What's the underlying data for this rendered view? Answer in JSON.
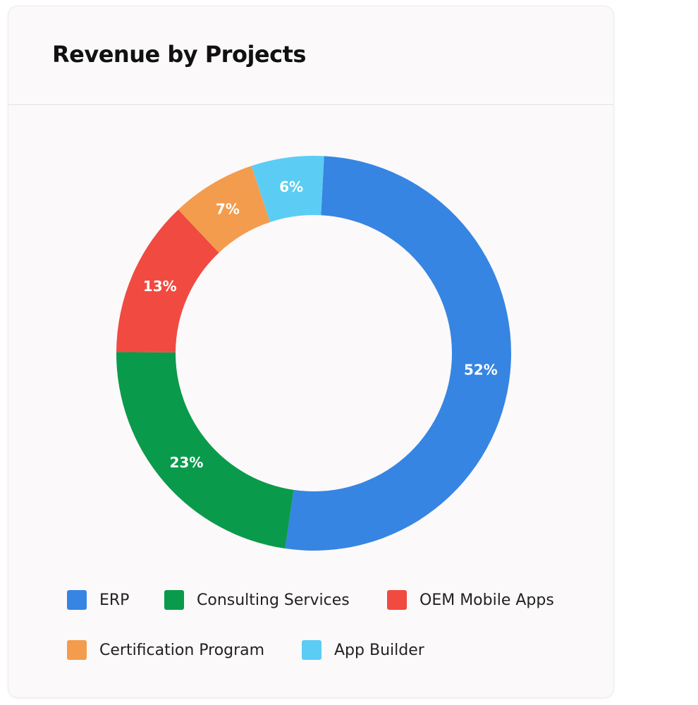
{
  "card": {
    "title": "Revenue by Projects"
  },
  "chart_data": {
    "type": "pie",
    "variant": "donut",
    "title": "Revenue by Projects",
    "categories": [
      "ERP",
      "Consulting Services",
      "OEM Mobile Apps",
      "Certification Program",
      "App Builder"
    ],
    "values": [
      52,
      23,
      13,
      7,
      6
    ],
    "value_labels": [
      "52%",
      "23%",
      "13%",
      "7%",
      "6%"
    ],
    "colors": [
      "#3685e2",
      "#0a9a4b",
      "#f04a41",
      "#f39c4e",
      "#5bcdf4"
    ],
    "start_angle_deg": 3,
    "direction": "clockwise",
    "legend_position": "bottom"
  },
  "legend": [
    {
      "label": "ERP",
      "color": "#3685e2"
    },
    {
      "label": "Consulting Services",
      "color": "#0a9a4b"
    },
    {
      "label": "OEM Mobile Apps",
      "color": "#f04a41"
    },
    {
      "label": "Certification Program",
      "color": "#f39c4e"
    },
    {
      "label": "App Builder",
      "color": "#5bcdf4"
    }
  ]
}
